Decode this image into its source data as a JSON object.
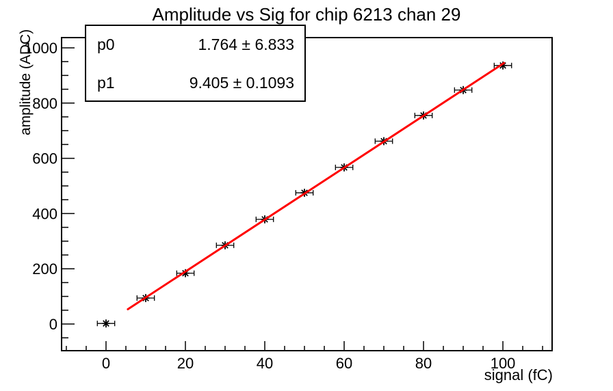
{
  "title": "Amplitude vs Sig for chip 6213 chan 29",
  "stats_box": {
    "rows": [
      {
        "name": "p0",
        "value": "1.764 ± 6.833"
      },
      {
        "name": "p1",
        "value": "9.405 ± 0.1093"
      }
    ]
  },
  "chart_data": {
    "type": "scatter",
    "title": "Amplitude vs Sig for chip 6213 chan 29",
    "xlabel": "signal (fC)",
    "ylabel": "amplitude (ADC)",
    "x": [
      0,
      10,
      20,
      30,
      40,
      50,
      60,
      70,
      80,
      90,
      100
    ],
    "y": [
      2,
      94,
      184,
      285,
      379,
      475,
      567,
      662,
      755,
      847,
      936
    ],
    "x_err": 1.5,
    "xlim": [
      -11.2,
      112.4
    ],
    "ylim": [
      -96.5,
      1037
    ],
    "x_major_ticks": [
      0,
      20,
      40,
      60,
      80,
      100
    ],
    "x_minor_step": 5,
    "y_major_ticks": [
      0,
      200,
      400,
      600,
      800,
      1000
    ],
    "y_minor_step": 50,
    "grid": false,
    "legend_position": "none",
    "marker": "asterisk",
    "marker_color": "#000000",
    "fit": {
      "type": "linear",
      "p0": 1.764,
      "p0_err": 6.833,
      "p1": 9.405,
      "p1_err": 0.1093,
      "draw_range": [
        5.5,
        100.3
      ],
      "color": "#ff0000"
    }
  },
  "colors": {
    "background": "#ffffff",
    "axis": "#000000",
    "fit_line": "#ff0000",
    "text": "#000000"
  }
}
